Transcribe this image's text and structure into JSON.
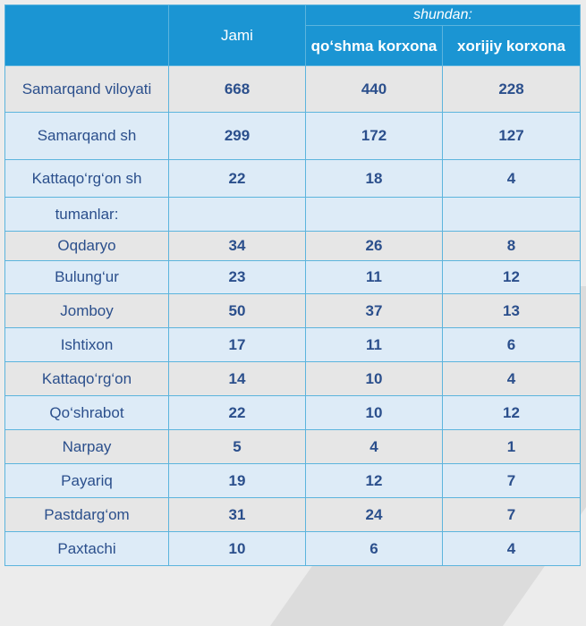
{
  "header": {
    "col_jami": "Jami",
    "group_label": "shundan:",
    "col_joint": "qo‘shma korxona",
    "col_foreign": "xorijiy korxona"
  },
  "rows": [
    {
      "name": "Samarqand viloyati",
      "jami": "668",
      "joint": "440",
      "foreign": "228"
    },
    {
      "name": "Samarqand sh",
      "jami": "299",
      "joint": "172",
      "foreign": "127"
    },
    {
      "name": "Kattaqo‘rg‘on sh",
      "jami": "22",
      "joint": "18",
      "foreign": "4"
    },
    {
      "name": "tumanlar:",
      "jami": "",
      "joint": "",
      "foreign": ""
    },
    {
      "name": "Oqdaryo",
      "jami": "34",
      "joint": "26",
      "foreign": "8"
    },
    {
      "name": "Bulung‘ur",
      "jami": "23",
      "joint": "11",
      "foreign": "12"
    },
    {
      "name": "Jomboy",
      "jami": "50",
      "joint": "37",
      "foreign": "13"
    },
    {
      "name": "Ishtixon",
      "jami": "17",
      "joint": "11",
      "foreign": "6"
    },
    {
      "name": "Kattaqo‘rg‘on",
      "jami": "14",
      "joint": "10",
      "foreign": "4"
    },
    {
      "name": "Qo‘shrabot",
      "jami": "22",
      "joint": "10",
      "foreign": "12"
    },
    {
      "name": "Narpay",
      "jami": "5",
      "joint": "4",
      "foreign": "1"
    },
    {
      "name": "Payariq",
      "jami": "19",
      "joint": "12",
      "foreign": "7"
    },
    {
      "name": "Pastdarg‘om",
      "jami": "31",
      "joint": "24",
      "foreign": "7"
    },
    {
      "name": "Paxtachi",
      "jami": "10",
      "joint": "6",
      "foreign": "4"
    }
  ]
}
